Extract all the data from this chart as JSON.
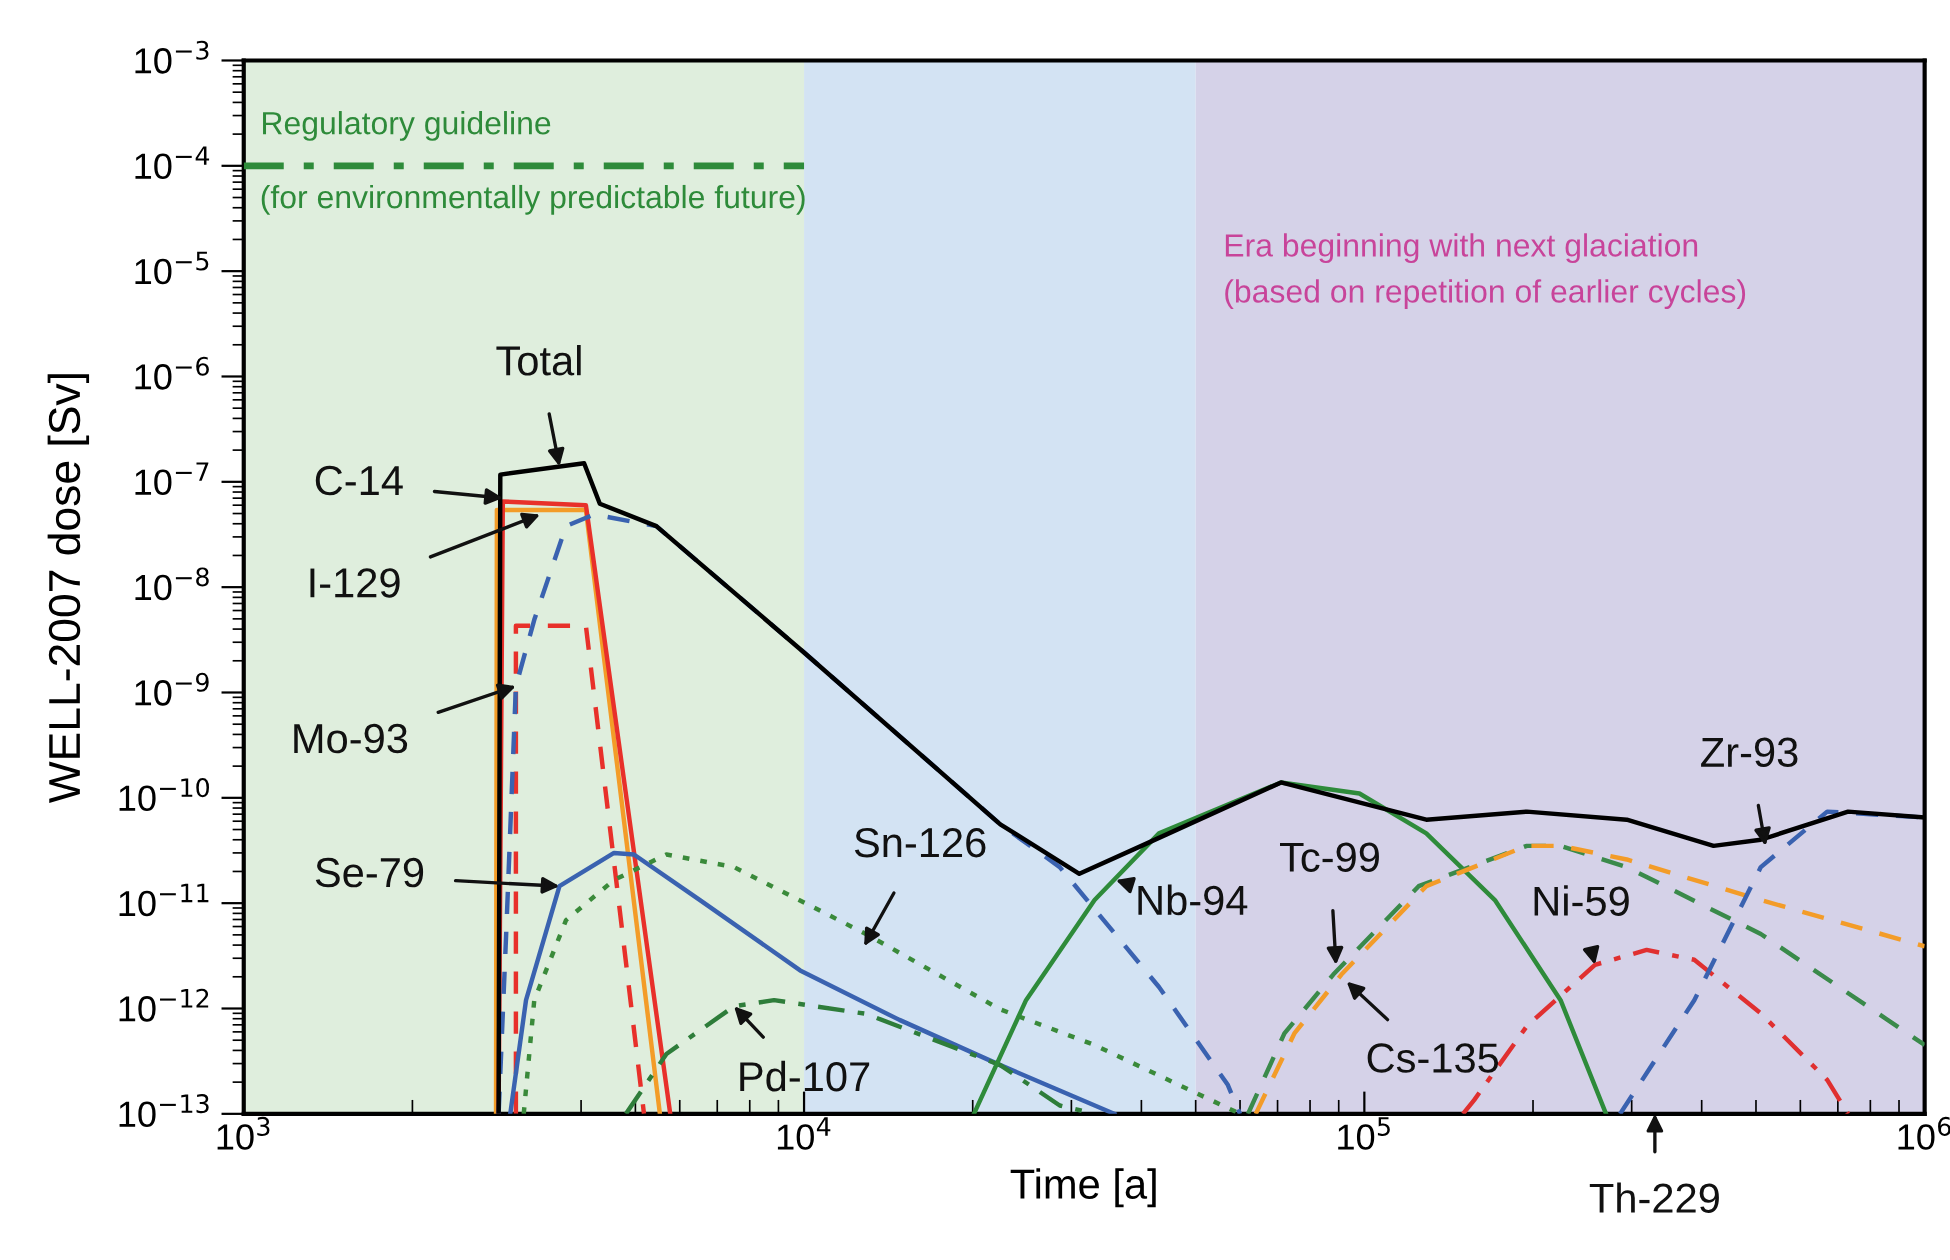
{
  "chart_data": {
    "type": "line",
    "xlabel": "Time [a]",
    "ylabel": "WELL-2007 dose [Sv]",
    "log": "xy",
    "grid": false,
    "legend": false,
    "xlim": [
      1000,
      1000000
    ],
    "ylim": [
      1e-13,
      0.001
    ],
    "xticks": [
      {
        "value": 1000,
        "label": "10$^{3}$"
      },
      {
        "value": 10000,
        "label": "10$^{4}$"
      },
      {
        "value": 100000,
        "label": "10$^{5}$"
      },
      {
        "value": 1000000,
        "label": "10$^{6}$"
      }
    ],
    "yticks": [
      {
        "value": 1e-13,
        "label": "10$^{−13}$"
      },
      {
        "value": 1e-12,
        "label": "10$^{−12}$"
      },
      {
        "value": 1e-11,
        "label": "10$^{−11}$"
      },
      {
        "value": 1e-10,
        "label": "10$^{−10}$"
      },
      {
        "value": 1e-09,
        "label": "10$^{−9}$"
      },
      {
        "value": 1e-08,
        "label": "10$^{−8}$"
      },
      {
        "value": 1e-07,
        "label": "10$^{−7}$"
      },
      {
        "value": 1e-06,
        "label": "10$^{−6}$"
      },
      {
        "value": 1e-05,
        "label": "10$^{−5}$"
      },
      {
        "value": 0.0001,
        "label": "10$^{−4}$"
      },
      {
        "value": 0.001,
        "label": "10$^{−3}$"
      }
    ],
    "bands": [
      {
        "axis": "x",
        "from": 1000,
        "to": 10000,
        "color": "#dfeedd"
      },
      {
        "axis": "x",
        "from": 10000,
        "to": 50000,
        "color": "#d3e3f3"
      },
      {
        "axis": "x",
        "from": 50000,
        "to": 1000000,
        "color": "#d5d2e8",
        "label": "Era beginning with next glaciation\n(based on repetition of earlier cycles)"
      }
    ],
    "series": [
      {
        "name": "Regulatory guideline",
        "color": "#2e8b3a",
        "line_style": "dashdot",
        "x": [
          1000,
          10000
        ],
        "values": [
          0.0001,
          0.0001
        ]
      },
      {
        "color": "#f39c28",
        "line_style": "solid",
        "x": [
          2820,
          2830,
          4080,
          5530
        ],
        "values": [
          1e-13,
          5.4e-08,
          5.4e-08,
          1e-13
        ]
      },
      {
        "color": "#e8302a",
        "line_style": "solid",
        "x": [
          2850,
          2900,
          4080,
          5770
        ],
        "values": [
          1e-13,
          6.5e-08,
          6e-08,
          1e-13
        ]
      },
      {
        "color": "#e8302a",
        "line_style": "dashed",
        "x": [
          3060,
          3060,
          4080,
          5180
        ],
        "values": [
          1e-13,
          4.3e-09,
          4.3e-09,
          1e-13
        ]
      },
      {
        "color": "#3a62b0",
        "line_style": "dashed",
        "x": [
          2850,
          2940,
          3060,
          3300,
          3760,
          4220,
          5450,
          10000,
          22400,
          28600,
          43000,
          57000,
          60000
        ],
        "values": [
          1e-13,
          5.1e-12,
          1.15e-09,
          4.9e-09,
          3.8e-08,
          4.9e-08,
          3.8e-08,
          2.4e-09,
          5.6e-11,
          2.2e-11,
          1.6e-12,
          1.9e-13,
          1e-13
        ]
      },
      {
        "color": "#3a62b0",
        "line_style": "solid",
        "x": [
          2990,
          3190,
          3660,
          4580,
          4970,
          6520,
          9840,
          14800,
          22400,
          35800
        ],
        "values": [
          1e-13,
          1.2e-12,
          1.45e-11,
          3e-11,
          2.9e-11,
          1.07e-11,
          2.3e-12,
          7.8e-13,
          2.9e-13,
          1e-13
        ]
      },
      {
        "color": "#3a8a3a",
        "line_style": "dotted",
        "x": [
          3160,
          3300,
          3760,
          4580,
          5680,
          7500,
          12900,
          22400,
          33000,
          60000
        ],
        "values": [
          1e-13,
          1.2e-12,
          6.9e-12,
          1.66e-11,
          2.9e-11,
          2.2e-11,
          5.1e-12,
          9.8e-13,
          4.5e-13,
          1e-13
        ]
      },
      {
        "color": "#2e7d3a",
        "line_style": "dashdot",
        "x": [
          4810,
          5680,
          7500,
          8840,
          12900,
          22400,
          28600,
          33000
        ],
        "values": [
          1e-13,
          3.7e-13,
          1.05e-12,
          1.2e-12,
          8.9e-13,
          2.9e-13,
          1.2e-13,
          1e-13
        ]
      },
      {
        "color": "#2e8b3a",
        "line_style": "solid",
        "x": [
          20100,
          24900,
          33000,
          43000,
          71000,
          98000,
          129000,
          171000,
          224000,
          270000
        ],
        "values": [
          1e-13,
          1.2e-12,
          1.07e-11,
          4.6e-11,
          1.4e-10,
          1.1e-10,
          4.6e-11,
          1.07e-11,
          1.2e-12,
          1e-13
        ]
      },
      {
        "color": "#3a8a4a",
        "line_style": "dashed",
        "x": [
          62000,
          72000,
          88000,
          125000,
          195000,
          224000,
          294000,
          510000,
          1000000
        ],
        "values": [
          1e-13,
          5.8e-13,
          2.1e-12,
          1.45e-11,
          3.5e-11,
          3.5e-11,
          2.2e-11,
          5.1e-12,
          4.5e-13
        ]
      },
      {
        "color": "#f39c28",
        "line_style": "dashed",
        "x": [
          64000,
          75000,
          91000,
          129000,
          195000,
          224000,
          294000,
          510000,
          1000000
        ],
        "values": [
          1e-13,
          5.8e-13,
          2.1e-12,
          1.45e-11,
          3.5e-11,
          3.5e-11,
          2.6e-11,
          1.07e-11,
          3.9e-12
        ]
      },
      {
        "color": "#e03030",
        "line_style": "dashdot",
        "x": [
          150000,
          157000,
          195000,
          258000,
          319000,
          388000,
          510000,
          670000,
          730000
        ],
        "values": [
          1e-13,
          1.35e-13,
          6.8e-13,
          2.6e-12,
          3.6e-12,
          2.9e-12,
          9e-13,
          2.1e-13,
          1e-13
        ]
      },
      {
        "color": "#3a62b0",
        "line_style": "dashed",
        "x": [
          286000,
          388000,
          510000,
          670000,
          1000000
        ],
        "values": [
          1e-13,
          1.2e-12,
          2.2e-11,
          7.4e-11,
          6.5e-11
        ]
      },
      {
        "color": "#000000",
        "line_style": "solid",
        "x": [
          2850,
          2870,
          4050,
          4320,
          5450,
          10000,
          22400,
          31000,
          40000,
          71000,
          129000,
          195000,
          294000,
          420000,
          510000,
          730000,
          1000000
        ],
        "values": [
          1e-13,
          1.17e-07,
          1.5e-07,
          6.2e-08,
          3.8e-08,
          2.4e-09,
          5.6e-11,
          1.9e-11,
          3.5e-11,
          1.4e-10,
          6.2e-11,
          7.4e-11,
          6.2e-11,
          3.5e-11,
          4e-11,
          7.4e-11,
          6.5e-11
        ]
      }
    ],
    "annotations": [
      {
        "text": "Total",
        "x": 3660,
        "y": 1.4e-07
      },
      {
        "text": "C-14",
        "x": 2900,
        "y": 7e-08
      },
      {
        "text": "I-129",
        "x": 3380,
        "y": 4.9e-08
      },
      {
        "text": "Mo-93",
        "x": 3060,
        "y": 1.15e-09
      },
      {
        "text": "Se-79",
        "x": 3660,
        "y": 1.45e-11
      },
      {
        "text": "Sn-126",
        "x": 12800,
        "y": 3.9e-12
      },
      {
        "text": "Pd-107",
        "x": 7500,
        "y": 1.05e-12
      },
      {
        "text": "Nb-94",
        "x": 36000,
        "y": 1.66e-11
      },
      {
        "text": "Tc-99",
        "x": 89000,
        "y": 2.6e-12
      },
      {
        "text": "Cs-135",
        "x": 93000,
        "y": 1.8e-12
      },
      {
        "text": "Ni-59",
        "x": 258000,
        "y": 2.6e-12
      },
      {
        "text": "Zr-93",
        "x": 520000,
        "y": 3.5e-11
      },
      {
        "text": "Th-229",
        "x": 330000,
        "y": 1e-13
      },
      {
        "text": "(for environmentally predictable future)",
        "x": 1000,
        "y": 0.0001
      }
    ]
  }
}
